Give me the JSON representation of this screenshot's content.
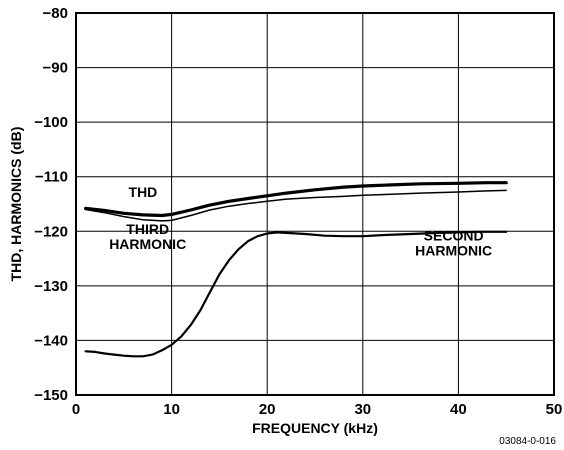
{
  "chart_data": {
    "type": "line",
    "title": "",
    "xlabel": "FREQUENCY (kHz)",
    "ylabel": "THD, HARMONICS (dB)",
    "xlim": [
      0,
      50
    ],
    "ylim": [
      -150,
      -80
    ],
    "x_ticks": [
      "0",
      "10",
      "20",
      "30",
      "40",
      "50"
    ],
    "y_ticks": [
      "−80",
      "−90",
      "−100",
      "−110",
      "−120",
      "−130",
      "−140",
      "−150"
    ],
    "grid": true,
    "figure_code": "03084-0-016",
    "annotations": [
      {
        "lines": [
          "THD"
        ],
        "x": 7,
        "y": -113.7
      },
      {
        "lines": [
          "THIRD",
          "HARMONIC"
        ],
        "x": 7.5,
        "y": -120.5
      },
      {
        "lines": [
          "SECOND",
          "HARMONIC"
        ],
        "x": 39.5,
        "y": -121.7
      }
    ],
    "series": [
      {
        "label": "THD",
        "x": [
          1,
          3,
          5,
          7,
          9,
          10,
          12,
          14,
          16,
          18,
          20,
          22,
          25,
          28,
          30,
          33,
          36,
          40,
          43,
          45
        ],
        "y": [
          -115.8,
          -116.2,
          -116.7,
          -117.0,
          -117.1,
          -116.9,
          -116.1,
          -115.2,
          -114.5,
          -114.0,
          -113.5,
          -113.0,
          -112.4,
          -111.9,
          -111.7,
          -111.5,
          -111.3,
          -111.2,
          -111.1,
          -111.1
        ]
      },
      {
        "label": "THIRD HARMONIC",
        "x": [
          1,
          3,
          5,
          7,
          9,
          10,
          12,
          14,
          16,
          18,
          20,
          22,
          25,
          28,
          30,
          33,
          36,
          40,
          43,
          45
        ],
        "y": [
          -116.0,
          -116.6,
          -117.3,
          -117.9,
          -118.1,
          -118.0,
          -117.1,
          -116.1,
          -115.4,
          -114.9,
          -114.5,
          -114.1,
          -113.8,
          -113.6,
          -113.4,
          -113.2,
          -113.0,
          -112.8,
          -112.6,
          -112.5
        ]
      },
      {
        "label": "SECOND HARMONIC",
        "x": [
          1,
          2,
          3,
          4,
          5,
          6,
          7,
          8,
          9,
          10,
          11,
          12,
          13,
          14,
          15,
          16,
          17,
          18,
          19,
          20,
          21,
          22,
          24,
          26,
          28,
          30,
          32,
          35,
          38,
          40,
          42,
          45
        ],
        "y": [
          -142.0,
          -142.1,
          -142.4,
          -142.6,
          -142.8,
          -142.9,
          -142.9,
          -142.6,
          -141.8,
          -140.8,
          -139.3,
          -137.2,
          -134.5,
          -131.2,
          -127.9,
          -125.3,
          -123.3,
          -121.8,
          -120.9,
          -120.4,
          -120.2,
          -120.3,
          -120.5,
          -120.8,
          -120.9,
          -120.9,
          -120.7,
          -120.5,
          -120.3,
          -120.2,
          -120.1,
          -120.1
        ]
      }
    ]
  }
}
